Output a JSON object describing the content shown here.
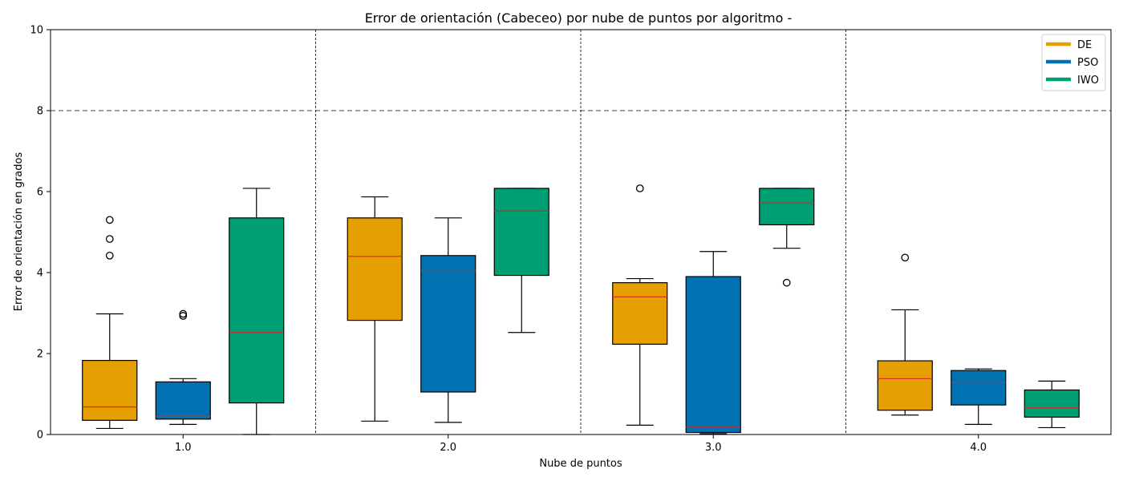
{
  "chart_data": {
    "type": "box",
    "title": "Error de orientación (Cabeceo) por nube de puntos por algoritmo -",
    "xlabel": "Nube de puntos",
    "ylabel": "Error de orientación en grados",
    "ylim": [
      0,
      10
    ],
    "yticks": [
      "0",
      "2",
      "4",
      "6",
      "8",
      "10"
    ],
    "categories": [
      "1.0",
      "2.0",
      "3.0",
      "4.0"
    ],
    "threshold": 8,
    "legend_position": "top-right",
    "median_color": "#d62728",
    "series": [
      {
        "name": "DE",
        "color": "#E69F00",
        "boxes": [
          {
            "whislo": 0.15,
            "q1": 0.35,
            "med": 0.68,
            "q3": 1.83,
            "whishi": 2.98,
            "fliers": [
              4.42,
              4.83,
              5.3
            ]
          },
          {
            "whislo": 0.33,
            "q1": 2.82,
            "med": 4.4,
            "q3": 5.35,
            "whishi": 5.87,
            "fliers": []
          },
          {
            "whislo": 0.23,
            "q1": 2.23,
            "med": 3.4,
            "q3": 3.75,
            "whishi": 3.85,
            "fliers": [
              6.08
            ]
          },
          {
            "whislo": 0.48,
            "q1": 0.6,
            "med": 1.38,
            "q3": 1.82,
            "whishi": 3.08,
            "fliers": [
              4.37
            ]
          }
        ]
      },
      {
        "name": "PSO",
        "color": "#0072B2",
        "boxes": [
          {
            "whislo": 0.25,
            "q1": 0.38,
            "med": 0.45,
            "q3": 1.3,
            "whishi": 1.38,
            "fliers": [
              2.93,
              2.98
            ]
          },
          {
            "whislo": 0.3,
            "q1": 1.05,
            "med": 4.05,
            "q3": 4.42,
            "whishi": 5.35,
            "fliers": []
          },
          {
            "whislo": 0.02,
            "q1": 0.05,
            "med": 0.18,
            "q3": 3.9,
            "whishi": 4.52,
            "fliers": []
          },
          {
            "whislo": 0.25,
            "q1": 0.73,
            "med": 1.28,
            "q3": 1.58,
            "whishi": 1.62,
            "fliers": []
          }
        ]
      },
      {
        "name": "IWO",
        "color": "#009E73",
        "boxes": [
          {
            "whislo": 0.0,
            "q1": 0.78,
            "med": 2.52,
            "q3": 5.35,
            "whishi": 6.08,
            "fliers": []
          },
          {
            "whislo": 2.52,
            "q1": 3.93,
            "med": 5.52,
            "q3": 6.08,
            "whishi": 6.08,
            "fliers": []
          },
          {
            "whislo": 4.6,
            "q1": 5.18,
            "med": 5.72,
            "q3": 6.08,
            "whishi": 6.08,
            "fliers": [
              3.75
            ]
          },
          {
            "whislo": 0.17,
            "q1": 0.43,
            "med": 0.66,
            "q3": 1.1,
            "whishi": 1.32,
            "fliers": []
          }
        ]
      }
    ]
  }
}
